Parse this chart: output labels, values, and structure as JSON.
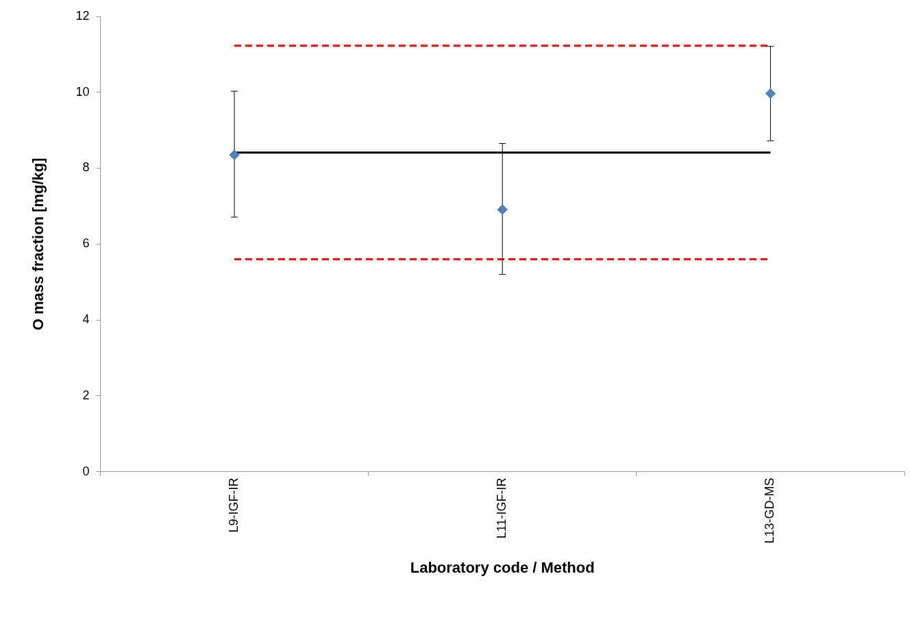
{
  "chart_data": {
    "type": "scatter",
    "xlabel": "Laboratory code / Method",
    "ylabel": "O mass fraction [mg/kg]",
    "categories": [
      "L9-IGF-IR",
      "L11-IGF-IR",
      "L13-GD-MS"
    ],
    "ylim": [
      0,
      12
    ],
    "yticks": [
      0,
      2,
      4,
      6,
      8,
      10,
      12
    ],
    "grid": false,
    "legend": false,
    "marker": "diamond",
    "series": [
      {
        "type": "line",
        "color": "#000000",
        "values": [
          8.41,
          8.41,
          8.41
        ],
        "line_style": "solid",
        "marker": "none"
      },
      {
        "type": "line",
        "color": "#ff0000",
        "values": [
          11.23,
          11.23,
          11.23
        ],
        "line_style": "dashed",
        "marker": "none"
      },
      {
        "type": "line",
        "color": "#ff0000",
        "values": [
          5.6,
          5.6,
          5.6
        ],
        "line_style": "dashed",
        "marker": "none"
      },
      {
        "color": "#4f81bd",
        "values": [
          8.35,
          6.91,
          9.97
        ],
        "errors": [
          [
            6.71,
            10.03
          ],
          [
            5.2,
            8.65
          ],
          [
            8.72,
            11.21
          ]
        ]
      }
    ]
  }
}
